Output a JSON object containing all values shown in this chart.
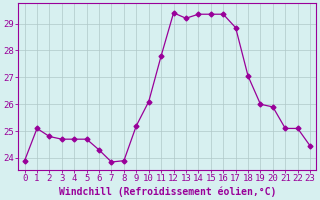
{
  "x": [
    0,
    1,
    2,
    3,
    4,
    5,
    6,
    7,
    8,
    9,
    10,
    11,
    12,
    13,
    14,
    15,
    16,
    17,
    18,
    19,
    20,
    21,
    22,
    23
  ],
  "y": [
    23.9,
    25.1,
    24.8,
    24.7,
    24.7,
    24.7,
    24.3,
    23.85,
    23.9,
    25.2,
    26.1,
    27.8,
    29.4,
    29.2,
    29.35,
    29.35,
    29.35,
    28.85,
    27.05,
    26.0,
    25.9,
    25.1,
    25.1,
    24.45
  ],
  "line_color": "#990099",
  "marker": "D",
  "marker_size": 2.5,
  "bg_color": "#d7f0f0",
  "grid_color": "#b0c8c8",
  "ylabel_ticks": [
    24,
    25,
    26,
    27,
    28,
    29
  ],
  "xlabel": "Windchill (Refroidissement éolien,°C)",
  "xlim": [
    -0.5,
    23.5
  ],
  "ylim": [
    23.55,
    29.75
  ],
  "tick_fontsize": 6.5,
  "xlabel_fontsize": 7
}
